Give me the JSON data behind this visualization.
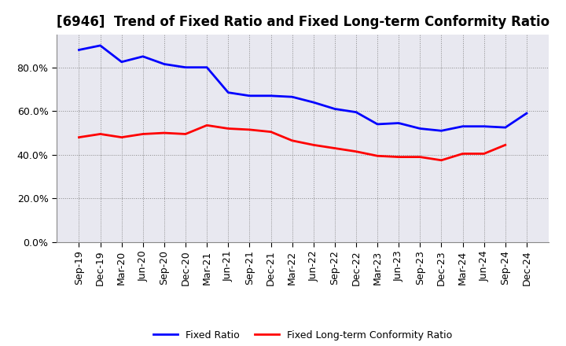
{
  "title": "[6946]  Trend of Fixed Ratio and Fixed Long-term Conformity Ratio",
  "labels": [
    "Sep-19",
    "Dec-19",
    "Mar-20",
    "Jun-20",
    "Sep-20",
    "Dec-20",
    "Mar-21",
    "Jun-21",
    "Sep-21",
    "Dec-21",
    "Mar-22",
    "Jun-22",
    "Sep-22",
    "Dec-22",
    "Mar-23",
    "Jun-23",
    "Sep-23",
    "Dec-23",
    "Mar-24",
    "Jun-24",
    "Sep-24",
    "Dec-24"
  ],
  "fixed_ratio": [
    88.0,
    90.0,
    82.5,
    85.0,
    81.5,
    80.0,
    80.0,
    68.5,
    67.0,
    67.0,
    66.5,
    64.0,
    61.0,
    59.5,
    54.0,
    54.5,
    52.0,
    51.0,
    53.0,
    53.0,
    52.5,
    59.0
  ],
  "fixed_lt_ratio": [
    48.0,
    49.5,
    48.0,
    49.5,
    50.0,
    49.5,
    53.5,
    52.0,
    51.5,
    50.5,
    46.5,
    44.5,
    43.0,
    41.5,
    39.5,
    39.0,
    39.0,
    37.5,
    40.5,
    40.5,
    44.5,
    null
  ],
  "fixed_ratio_color": "#0000FF",
  "fixed_lt_ratio_color": "#FF0000",
  "ylim": [
    0,
    95
  ],
  "yticks": [
    0,
    20,
    40,
    60,
    80
  ],
  "background_color": "#FFFFFF",
  "plot_bg_color": "#E8E8F0",
  "grid_color": "#888888",
  "legend_fixed_ratio": "Fixed Ratio",
  "legend_fixed_lt_ratio": "Fixed Long-term Conformity Ratio",
  "title_fontsize": 12,
  "tick_fontsize": 9
}
